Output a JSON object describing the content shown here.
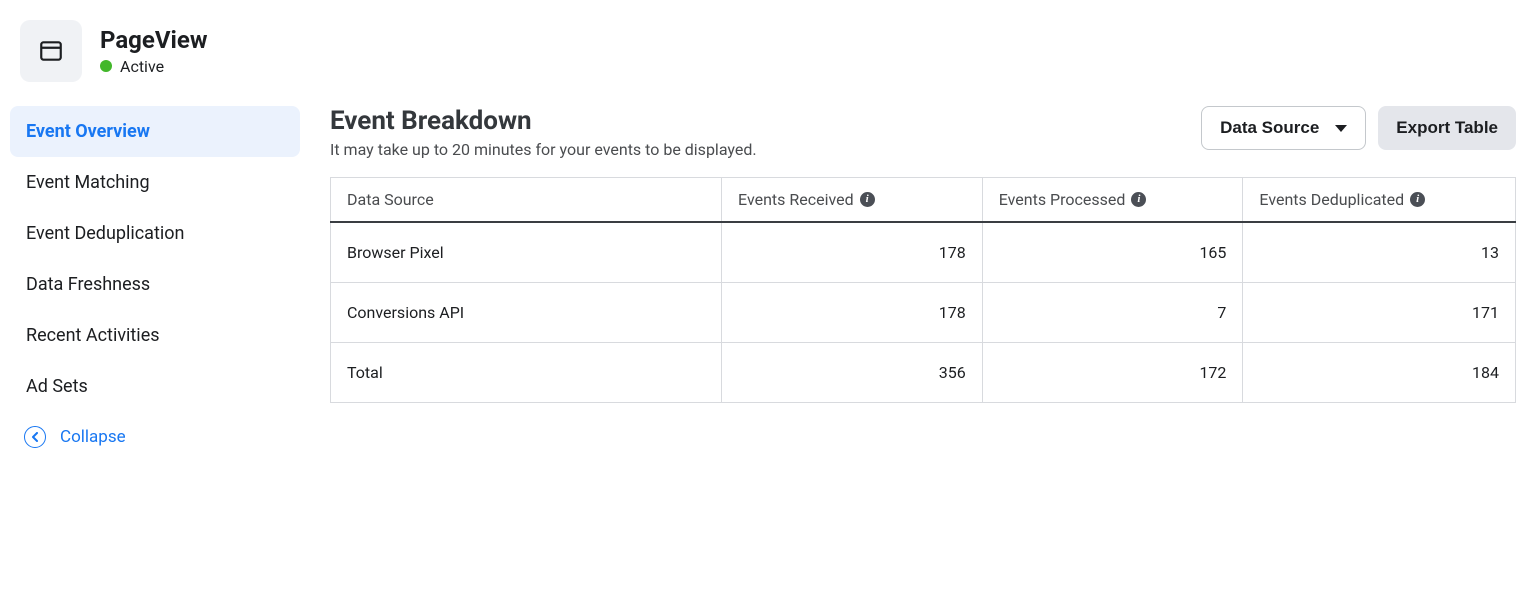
{
  "header": {
    "title": "PageView",
    "status_label": "Active",
    "status_color": "#42b72a"
  },
  "sidebar": {
    "items": [
      "Event Overview",
      "Event Matching",
      "Event Deduplication",
      "Data Freshness",
      "Recent Activities",
      "Ad Sets"
    ],
    "active_index": 0,
    "collapse_label": "Collapse"
  },
  "main": {
    "title": "Event Breakdown",
    "subtitle": "It may take up to 20 minutes for your events to be displayed.",
    "data_source_button": "Data Source",
    "export_button": "Export Table"
  },
  "table": {
    "columns": [
      "Data Source",
      "Events Received",
      "Events Processed",
      "Events Deduplicated"
    ],
    "column_widths": [
      "33%",
      "22%",
      "22%",
      "23%"
    ],
    "info_cols": [
      false,
      true,
      true,
      true
    ],
    "rows": [
      {
        "label": "Browser Pixel",
        "received": 178,
        "processed": 165,
        "deduplicated": 13
      },
      {
        "label": "Conversions API",
        "received": 178,
        "processed": 7,
        "deduplicated": 171
      },
      {
        "label": "Total",
        "received": 356,
        "processed": 172,
        "deduplicated": 184
      }
    ]
  },
  "colors": {
    "accent": "#1877f2",
    "active_bg": "#ebf2fd",
    "border": "#d8dade",
    "muted_btn": "#e4e6eb",
    "header_border_dark": "#3a3e42"
  }
}
